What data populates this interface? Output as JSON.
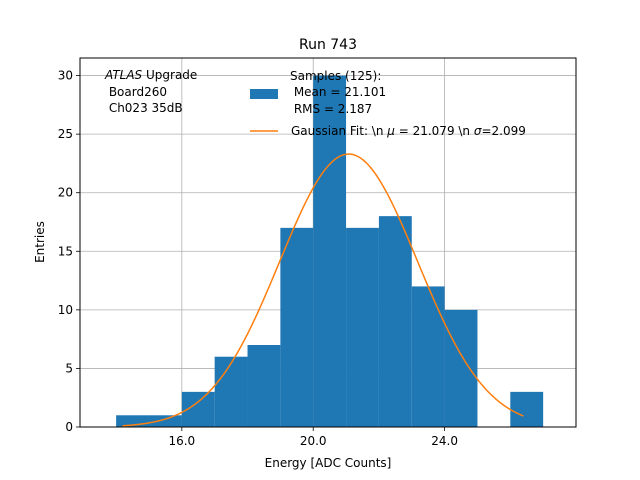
{
  "chart_data": {
    "type": "bar",
    "title": "Run 743",
    "xlabel": "Energy [ADC Counts]",
    "ylabel": "Entries",
    "xlim": [
      12.9,
      28.0
    ],
    "ylim": [
      0,
      31.5
    ],
    "x_ticks": [
      16.0,
      20.0,
      24.0
    ],
    "x_tick_labels": [
      "16.0",
      "20.0",
      "24.0"
    ],
    "y_ticks": [
      0,
      5,
      10,
      15,
      20,
      25,
      30
    ],
    "y_tick_labels": [
      "0",
      "5",
      "10",
      "15",
      "20",
      "25",
      "30"
    ],
    "grid": true,
    "bar_color": "#1f77b4",
    "fit_color": "#ff7f0e",
    "histogram": {
      "bin_edges": [
        14,
        15,
        16,
        17,
        18,
        19,
        20,
        21,
        22,
        23,
        24,
        25,
        26,
        27
      ],
      "counts": [
        1,
        1,
        3,
        6,
        7,
        17,
        30,
        17,
        18,
        12,
        10,
        0,
        3
      ]
    },
    "gaussian_fit": {
      "mu": 21.079,
      "sigma": 2.099,
      "amplitude": 23.3,
      "x_range": [
        14.2,
        26.4
      ]
    },
    "annotation": {
      "line1_italic": "ATLAS",
      "line1_rest": " Upgrade",
      "line2": " Board260",
      "line3": " Ch023 35dB"
    },
    "legend": {
      "position": "top-right",
      "samples_line1": "Samples (125):",
      "samples_line2": " Mean = 21.101",
      "samples_line3": " RMS = 2.187",
      "fit_prefix": "Gaussian Fit: \\n ",
      "fit_mu": "μ",
      "fit_mid": " = 21.079 \\n ",
      "fit_sigma": "σ",
      "fit_end": "=2.099"
    }
  }
}
